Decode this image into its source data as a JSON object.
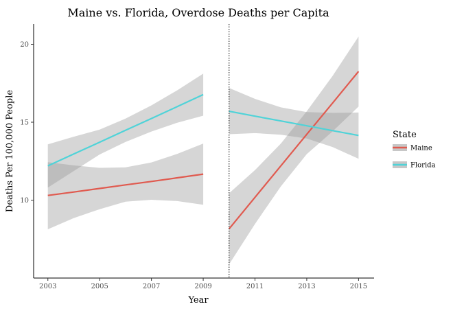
{
  "chart_data": {
    "type": "line",
    "title": "Maine vs. Florida, Overdose Deaths per Capita",
    "xlabel": "Year",
    "ylabel": "Deaths Per 100,000 People",
    "xlim": [
      2002.45,
      2015.6
    ],
    "ylim": [
      5.0,
      21.3
    ],
    "x_ticks": [
      2003,
      2005,
      2007,
      2009,
      2011,
      2013,
      2015
    ],
    "y_ticks": [
      10,
      15,
      20
    ],
    "grid": false,
    "vline": {
      "x": 2010,
      "style": "dotted"
    },
    "legend": {
      "title": "State",
      "placement": "right"
    },
    "series": [
      {
        "name": "Maine",
        "color": "#e05a4f",
        "segments": [
          {
            "x": [
              2003,
              2004,
              2005,
              2006,
              2007,
              2008,
              2009
            ],
            "y": [
              10.3,
              10.52,
              10.75,
              10.98,
              11.2,
              11.43,
              11.67
            ],
            "lower": [
              8.13,
              8.85,
              9.42,
              9.9,
              10.02,
              9.94,
              9.7
            ],
            "upper": [
              12.43,
              12.23,
              12.07,
              12.1,
              12.42,
              12.97,
              13.63
            ]
          },
          {
            "x": [
              2010,
              2011,
              2012,
              2013,
              2014,
              2015
            ],
            "y": [
              8.16,
              10.18,
              12.2,
              14.22,
              16.24,
              18.26
            ],
            "lower": [
              5.88,
              8.47,
              10.88,
              12.95,
              14.42,
              16.0
            ],
            "upper": [
              10.44,
              11.93,
              13.63,
              15.7,
              17.98,
              20.5
            ]
          }
        ]
      },
      {
        "name": "Florida",
        "color": "#4fd3d8",
        "segments": [
          {
            "x": [
              2003,
              2004,
              2005,
              2006,
              2007,
              2008,
              2009
            ],
            "y": [
              12.2,
              12.96,
              13.72,
              14.48,
              15.24,
              16.0,
              16.77
            ],
            "lower": [
              10.8,
              11.87,
              12.93,
              13.73,
              14.4,
              14.97,
              15.42
            ],
            "upper": [
              13.58,
              14.07,
              14.53,
              15.23,
              16.08,
              17.05,
              18.12
            ]
          },
          {
            "x": [
              2010,
              2011,
              2012,
              2013,
              2014,
              2015
            ],
            "y": [
              15.7,
              15.39,
              15.08,
              14.77,
              14.46,
              14.15
            ],
            "lower": [
              14.23,
              14.3,
              14.2,
              13.95,
              13.4,
              12.65
            ],
            "upper": [
              17.2,
              16.5,
              15.95,
              15.65,
              15.6,
              15.62
            ]
          }
        ]
      }
    ]
  }
}
